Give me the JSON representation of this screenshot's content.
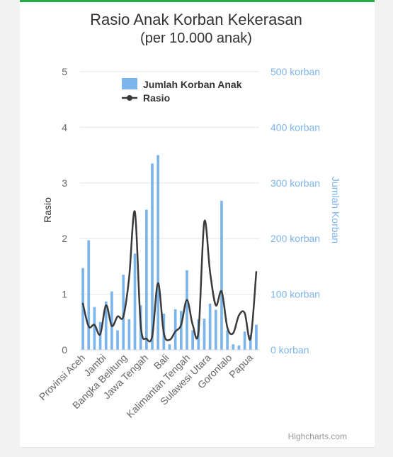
{
  "chart_data": {
    "type": "bar+line",
    "title": "Rasio Anak Korban Kekerasan",
    "subtitle": "(per 10.000 anak)",
    "y_left": {
      "label": "Rasio",
      "ticks": [
        "0",
        "1",
        "2",
        "3",
        "4",
        "5"
      ],
      "range": [
        0,
        5
      ]
    },
    "y_right": {
      "label": "Jumlah Korban",
      "ticks": [
        "0 korban",
        "100 korban",
        "200 korban",
        "300 korban",
        "400 korban",
        "500 korban"
      ],
      "range": [
        0,
        500
      ]
    },
    "x_labels": [
      "Provinsi Aceh",
      "Jambi",
      "Bangka Belitung",
      "Jawa Tengah",
      "Bali",
      "Kalimantan Tengah",
      "Sulawesi Utara",
      "Gorontalo",
      "Papua"
    ],
    "legend": {
      "position": "top-right",
      "items": [
        "Jumlah Korban Anak",
        "Rasio"
      ]
    },
    "colors": {
      "bars": "#7cb5ec",
      "line": "#3a3a3a",
      "right_axis": "#7cb5ec",
      "title": "#333333"
    },
    "credit": "Highcharts.com",
    "series": [
      {
        "name": "Jumlah Korban Anak",
        "type": "bar",
        "axis": "right",
        "values": [
          147,
          197,
          77,
          50,
          87,
          105,
          35,
          135,
          55,
          173,
          80,
          252,
          335,
          350,
          65,
          10,
          73,
          70,
          143,
          35,
          55,
          56,
          83,
          72,
          268,
          35,
          10,
          8,
          33,
          27,
          45
        ]
      },
      {
        "name": "Rasio",
        "type": "line",
        "axis": "left",
        "values": [
          0.83,
          0.42,
          0.45,
          0.28,
          0.8,
          0.43,
          0.6,
          0.6,
          1.3,
          2.48,
          0.45,
          0.2,
          0.25,
          1.2,
          0.3,
          0.18,
          0.33,
          0.45,
          0.9,
          0.45,
          0.33,
          2.3,
          1.4,
          0.8,
          1.05,
          0.4,
          0.3,
          0.62,
          0.66,
          0.2,
          1.4
        ]
      }
    ]
  }
}
